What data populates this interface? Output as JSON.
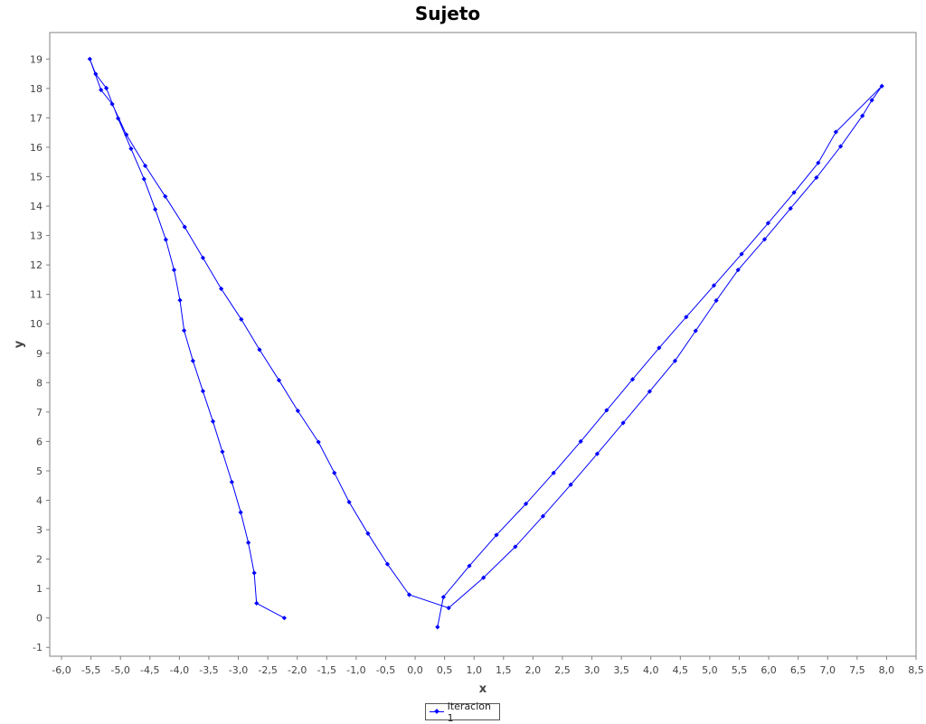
{
  "chart_data": {
    "type": "line",
    "title": "Sujeto",
    "xlabel": "x",
    "ylabel": "y",
    "xlim": [
      -6.2,
      8.5
    ],
    "ylim": [
      -1.3,
      19.9
    ],
    "xticks": [
      "-6,0",
      "-5,5",
      "-5,0",
      "-4,5",
      "-4,0",
      "-3,5",
      "-3,0",
      "-2,5",
      "-2,0",
      "-1,5",
      "-1,0",
      "-0,5",
      "0,0",
      "0,5",
      "1,0",
      "1,5",
      "2,0",
      "2,5",
      "3,0",
      "3,5",
      "4,0",
      "4,5",
      "5,0",
      "5,5",
      "6,0",
      "6,5",
      "7,0",
      "7,5",
      "8,0",
      "8,5"
    ],
    "yticks": [
      "-1",
      "0",
      "1",
      "2",
      "3",
      "4",
      "5",
      "6",
      "7",
      "8",
      "9",
      "10",
      "11",
      "12",
      "13",
      "14",
      "15",
      "16",
      "17",
      "18",
      "19"
    ],
    "grid": false,
    "legend_position": "bottom",
    "colors": {
      "series": "#0000ff",
      "axis": "#808080"
    },
    "series": [
      {
        "name": "Iteracion 1",
        "points": [
          [
            -2.22,
            0.0
          ],
          [
            -2.69,
            0.5
          ],
          [
            -2.73,
            1.53
          ],
          [
            -2.83,
            2.56
          ],
          [
            -2.96,
            3.59
          ],
          [
            -3.11,
            4.62
          ],
          [
            -3.27,
            5.65
          ],
          [
            -3.43,
            6.68
          ],
          [
            -3.6,
            7.71
          ],
          [
            -3.77,
            8.74
          ],
          [
            -3.92,
            9.77
          ],
          [
            -3.99,
            10.8
          ],
          [
            -4.09,
            11.83
          ],
          [
            -4.23,
            12.86
          ],
          [
            -4.41,
            13.89
          ],
          [
            -4.6,
            14.92
          ],
          [
            -4.82,
            15.95
          ],
          [
            -5.04,
            16.98
          ],
          [
            -5.24,
            18.01
          ],
          [
            -5.42,
            18.49
          ],
          [
            -5.52,
            19.0
          ],
          [
            -5.33,
            17.95
          ],
          [
            -5.14,
            17.47
          ],
          [
            -4.9,
            16.43
          ],
          [
            -4.58,
            15.37
          ],
          [
            -4.24,
            14.33
          ],
          [
            -3.91,
            13.29
          ],
          [
            -3.6,
            12.24
          ],
          [
            -3.29,
            11.19
          ],
          [
            -2.95,
            10.15
          ],
          [
            -2.64,
            9.12
          ],
          [
            -2.31,
            8.08
          ],
          [
            -1.99,
            7.04
          ],
          [
            -1.64,
            5.98
          ],
          [
            -1.37,
            4.93
          ],
          [
            -1.12,
            3.94
          ],
          [
            -0.8,
            2.87
          ],
          [
            -0.47,
            1.83
          ],
          [
            -0.1,
            0.79
          ],
          [
            0.57,
            0.34
          ],
          [
            1.16,
            1.37
          ],
          [
            1.7,
            2.42
          ],
          [
            2.17,
            3.46
          ],
          [
            2.64,
            4.53
          ],
          [
            3.09,
            5.58
          ],
          [
            3.53,
            6.63
          ],
          [
            3.98,
            7.7
          ],
          [
            4.41,
            8.74
          ],
          [
            4.76,
            9.76
          ],
          [
            5.11,
            10.79
          ],
          [
            5.48,
            11.83
          ],
          [
            5.93,
            12.87
          ],
          [
            6.37,
            13.92
          ],
          [
            6.81,
            14.97
          ],
          [
            7.22,
            16.03
          ],
          [
            7.59,
            17.07
          ],
          [
            7.75,
            17.6
          ],
          [
            7.92,
            18.08
          ],
          [
            7.14,
            16.52
          ],
          [
            6.84,
            15.47
          ],
          [
            6.43,
            14.46
          ],
          [
            5.99,
            13.42
          ],
          [
            5.54,
            12.37
          ],
          [
            5.07,
            11.3
          ],
          [
            4.6,
            10.23
          ],
          [
            4.14,
            9.18
          ],
          [
            3.69,
            8.11
          ],
          [
            3.25,
            7.06
          ],
          [
            2.81,
            6.0
          ],
          [
            2.35,
            4.93
          ],
          [
            1.88,
            3.88
          ],
          [
            1.38,
            2.82
          ],
          [
            0.92,
            1.77
          ],
          [
            0.48,
            0.71
          ],
          [
            0.38,
            -0.31
          ]
        ]
      }
    ]
  }
}
